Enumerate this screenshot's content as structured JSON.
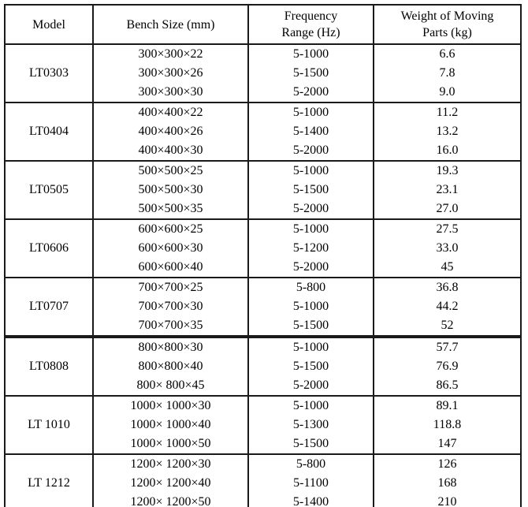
{
  "page": {
    "background": "#ffffff",
    "border_color": "#1a1a1a"
  },
  "table": {
    "columns": [
      {
        "label": "Model"
      },
      {
        "label": "Bench Size (mm)"
      },
      {
        "label": "Frequency\nRange (Hz)"
      },
      {
        "label": "Weight of Moving\nParts (kg)"
      }
    ],
    "groups": [
      {
        "model": "LT0303",
        "rows": [
          {
            "size": "300×300×22",
            "freq": "5-1000",
            "weight": "6.6"
          },
          {
            "size": "300×300×26",
            "freq": "5-1500",
            "weight": "7.8"
          },
          {
            "size": "300×300×30",
            "freq": "5-2000",
            "weight": "9.0"
          }
        ]
      },
      {
        "model": "LT0404",
        "rows": [
          {
            "size": "400×400×22",
            "freq": "5-1000",
            "weight": "11.2"
          },
          {
            "size": "400×400×26",
            "freq": "5-1400",
            "weight": "13.2"
          },
          {
            "size": "400×400×30",
            "freq": "5-2000",
            "weight": "16.0"
          }
        ]
      },
      {
        "model": "LT0505",
        "rows": [
          {
            "size": "500×500×25",
            "freq": "5-1000",
            "weight": "19.3"
          },
          {
            "size": "500×500×30",
            "freq": "5-1500",
            "weight": "23.1"
          },
          {
            "size": "500×500×35",
            "freq": "5-2000",
            "weight": "27.0"
          }
        ]
      },
      {
        "model": "LT0606",
        "rows": [
          {
            "size": "600×600×25",
            "freq": "5-1000",
            "weight": "27.5"
          },
          {
            "size": "600×600×30",
            "freq": "5-1200",
            "weight": "33.0"
          },
          {
            "size": "600×600×40",
            "freq": "5-2000",
            "weight": "45"
          }
        ]
      },
      {
        "model": "LT0707",
        "rows": [
          {
            "size": "700×700×25",
            "freq": "5-800",
            "weight": "36.8"
          },
          {
            "size": "700×700×30",
            "freq": "5-1000",
            "weight": "44.2"
          },
          {
            "size": "700×700×35",
            "freq": "5-1500",
            "weight": "52"
          }
        ]
      },
      {
        "model": "LT0808",
        "rows": [
          {
            "size": "800×800×30",
            "freq": "5-1000",
            "weight": "57.7"
          },
          {
            "size": "800×800×40",
            "freq": "5-1500",
            "weight": "76.9"
          },
          {
            "size": "800× 800×45",
            "freq": "5-2000",
            "weight": "86.5"
          }
        ]
      },
      {
        "model": "LT 1010",
        "rows": [
          {
            "size": "1000× 1000×30",
            "freq": "5-1000",
            "weight": "89.1"
          },
          {
            "size": "1000× 1000×40",
            "freq": "5-1300",
            "weight": "118.8"
          },
          {
            "size": "1000× 1000×50",
            "freq": "5-1500",
            "weight": "147"
          }
        ]
      },
      {
        "model": "LT 1212",
        "rows": [
          {
            "size": "1200× 1200×30",
            "freq": "5-800",
            "weight": "126"
          },
          {
            "size": "1200× 1200×40",
            "freq": "5-1100",
            "weight": "168"
          },
          {
            "size": "1200× 1200×50",
            "freq": "5-1400",
            "weight": "210"
          }
        ]
      }
    ]
  }
}
